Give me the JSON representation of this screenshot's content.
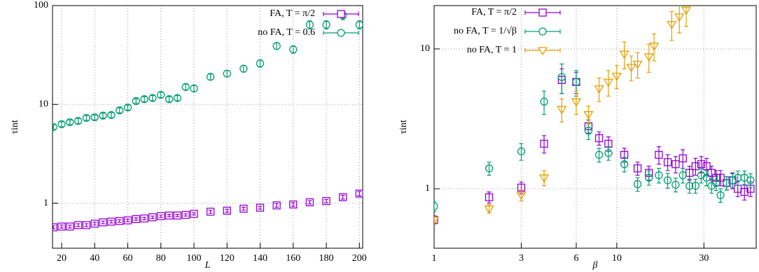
{
  "chart_data": [
    {
      "type": "scatter",
      "xlabel": "L",
      "ylabel": "τint",
      "logy": true,
      "grid": true,
      "legend": "top-right",
      "xlim": [
        14.5,
        202
      ],
      "xticks": [
        20,
        40,
        60,
        80,
        100,
        120,
        140,
        160,
        180,
        200
      ],
      "ylim": [
        0.35,
        100
      ],
      "yticks": [
        1,
        10,
        100
      ],
      "series": [
        {
          "name": "FA, T = π/2",
          "color": "#9400d3",
          "marker": "square",
          "x": [
            15,
            20,
            25,
            30,
            35,
            40,
            45,
            50,
            55,
            60,
            65,
            70,
            75,
            80,
            85,
            90,
            95,
            100,
            110,
            120,
            130,
            140,
            150,
            160,
            170,
            180,
            190,
            200
          ],
          "values": [
            0.57,
            0.58,
            0.58,
            0.6,
            0.6,
            0.62,
            0.64,
            0.65,
            0.66,
            0.67,
            0.69,
            0.7,
            0.72,
            0.74,
            0.75,
            0.75,
            0.76,
            0.78,
            0.82,
            0.84,
            0.88,
            0.9,
            0.95,
            0.97,
            1.02,
            1.05,
            1.15,
            1.25
          ],
          "errors": [
            0.02,
            0.02,
            0.02,
            0.02,
            0.02,
            0.02,
            0.02,
            0.02,
            0.02,
            0.02,
            0.02,
            0.02,
            0.02,
            0.02,
            0.02,
            0.02,
            0.02,
            0.02,
            0.03,
            0.03,
            0.03,
            0.03,
            0.04,
            0.04,
            0.04,
            0.04,
            0.05,
            0.06
          ]
        },
        {
          "name": "no FA, T = 0.6",
          "color": "#009e73",
          "marker": "circle",
          "x": [
            15,
            20,
            25,
            30,
            35,
            40,
            45,
            50,
            55,
            60,
            65,
            70,
            75,
            80,
            85,
            90,
            95,
            100,
            110,
            120,
            130,
            140,
            150,
            160,
            170,
            180,
            190,
            200
          ],
          "values": [
            5.9,
            6.3,
            6.6,
            6.8,
            7.3,
            7.4,
            7.7,
            7.8,
            8.7,
            9.3,
            10.8,
            11.3,
            11.6,
            12.5,
            11.3,
            11.6,
            15,
            14.5,
            19,
            20.5,
            23,
            26,
            39,
            36,
            64,
            64,
            80,
            64
          ],
          "errors": [
            0.3,
            0.35,
            0.35,
            0.4,
            0.4,
            0.4,
            0.45,
            0.45,
            0.5,
            0.55,
            0.6,
            0.7,
            0.7,
            0.8,
            0.7,
            0.7,
            1,
            1,
            1.3,
            1.5,
            1.8,
            2.2,
            3,
            3,
            6,
            6,
            8,
            6
          ]
        }
      ]
    },
    {
      "type": "scatter",
      "xlabel": "β",
      "ylabel": "τint",
      "logx": true,
      "logy": true,
      "grid": true,
      "legend": "top-left",
      "xlim": [
        1,
        58
      ],
      "xticks": [
        1,
        3,
        6,
        10,
        30
      ],
      "ylim": [
        0.376,
        20.4
      ],
      "yticks": [
        1,
        10
      ],
      "series": [
        {
          "name": "FA, T = π/2",
          "color": "#9400d3",
          "marker": "square",
          "x": [
            1,
            2,
            3,
            4,
            5,
            6,
            7,
            8,
            9,
            11,
            13,
            15,
            17,
            19,
            21,
            23,
            25,
            27,
            29,
            31,
            33,
            35,
            37,
            40,
            43,
            46,
            50,
            54
          ],
          "values": [
            0.6,
            0.87,
            1.02,
            2.1,
            6.0,
            5.8,
            2.8,
            2.3,
            2.1,
            1.75,
            1.4,
            1.3,
            1.75,
            1.55,
            1.5,
            1.65,
            1.3,
            1.45,
            1.5,
            1.45,
            1.3,
            1.2,
            1.2,
            1.1,
            1.15,
            1.0,
            0.95,
            1.0
          ],
          "errors": [
            0.04,
            0.08,
            0.1,
            0.3,
            1.2,
            1.0,
            0.3,
            0.25,
            0.25,
            0.2,
            0.15,
            0.15,
            0.25,
            0.2,
            0.2,
            0.25,
            0.15,
            0.2,
            0.2,
            0.2,
            0.15,
            0.15,
            0.15,
            0.12,
            0.15,
            0.12,
            0.12,
            0.12
          ]
        },
        {
          "name": "no FA, T = 1/√β",
          "color": "#009e73",
          "marker": "circle",
          "x": [
            1,
            2,
            3,
            4,
            5,
            6,
            7,
            8,
            9,
            11,
            13,
            15,
            17,
            19,
            21,
            23,
            25,
            27,
            29,
            31,
            33,
            35,
            37,
            40,
            43,
            46,
            50,
            54
          ],
          "values": [
            0.75,
            1.4,
            1.85,
            4.2,
            6.3,
            5.8,
            2.6,
            1.75,
            1.8,
            1.5,
            1.08,
            1.2,
            1.25,
            1.15,
            1.07,
            1.25,
            1.05,
            1.05,
            1.25,
            1.2,
            1.05,
            1.1,
            0.9,
            1.1,
            1.15,
            1.2,
            1.2,
            1.15
          ],
          "errors": [
            0.06,
            0.15,
            0.25,
            0.8,
            1.5,
            1.2,
            0.35,
            0.2,
            0.2,
            0.18,
            0.12,
            0.14,
            0.15,
            0.14,
            0.12,
            0.15,
            0.12,
            0.12,
            0.15,
            0.15,
            0.12,
            0.13,
            0.1,
            0.12,
            0.13,
            0.14,
            0.14,
            0.13
          ]
        },
        {
          "name": "no FA, T = 1",
          "color": "#e69f00",
          "marker": "triangle",
          "x": [
            1,
            2,
            3,
            4,
            5,
            6,
            7,
            8,
            9,
            10,
            11,
            12,
            13,
            15,
            16,
            20,
            22,
            24
          ],
          "values": [
            0.6,
            0.72,
            0.9,
            1.2,
            3.7,
            4.2,
            3.4,
            5.2,
            5.8,
            6.4,
            9.2,
            7.4,
            7.8,
            8.8,
            10.5,
            15,
            17,
            19
          ],
          "errors": [
            0.03,
            0.05,
            0.08,
            0.15,
            0.7,
            0.8,
            0.5,
            1.0,
            1.2,
            1.2,
            2.0,
            1.5,
            1.6,
            2.0,
            2.3,
            3.5,
            4,
            4.5
          ]
        }
      ]
    }
  ]
}
